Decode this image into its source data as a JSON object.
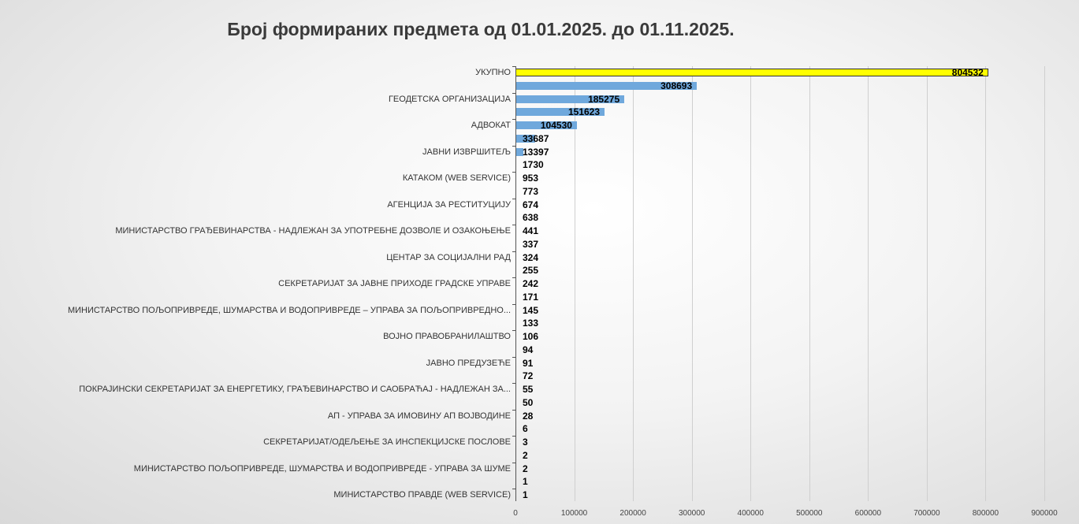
{
  "chart_data": {
    "type": "bar",
    "orientation": "horizontal",
    "title": "Број формираних предмета од 01.01.2025. до 01.11.2025.",
    "xlabel": "",
    "ylabel": "",
    "xlim": [
      0,
      900000
    ],
    "x_ticks": [
      "0",
      "100000",
      "200000",
      "300000",
      "400000",
      "500000",
      "600000",
      "700000",
      "800000",
      "900000"
    ],
    "grid": true,
    "legend": "none",
    "colors": {
      "total": "#ffff00",
      "default": "#6fa8dc"
    },
    "categories": [
      "УКУПНО",
      "",
      "ГЕОДЕТСКА ОРГАНИЗАЦИЈА",
      "",
      "АДВОКАТ",
      "",
      "ЈАВНИ ИЗВРШИТЕЉ",
      "",
      "КАТАКОМ (WEB SERVICE)",
      "",
      "АГЕНЦИЈА ЗА РЕСТИТУЦИЈУ",
      "",
      "МИНИСТАРСТВО ГРАЂЕВИНАРСТВА - НАДЛЕЖАН ЗА УПОТРЕБНЕ ДОЗВОЛЕ И ОЗАКОЊЕЊЕ",
      "",
      "ЦЕНТАР ЗА СОЦИЈАЛНИ РАД",
      "",
      "СЕКРЕТАРИЈАТ ЗА ЈАВНЕ ПРИХОДЕ ГРАДСКЕ УПРАВЕ",
      "",
      "МИНИСТАРСТВО ПОЉОПРИВРЕДЕ, ШУМАРСТВА И ВОДОПРИВРЕДЕ – УПРАВА ЗА ПОЉОПРИВРЕДНО...",
      "",
      "ВОЈНО ПРАВОБРАНИЛАШТВО",
      "",
      "ЈАВНО ПРЕДУЗЕЋЕ",
      "",
      "ПОКРАЈИНСКИ СЕКРЕТАРИЈАТ ЗА ЕНЕРГЕТИКУ, ГРАЂЕВИНАРСТВО И САОБРАЋАЈ - НАДЛЕЖАН ЗА...",
      "",
      "АП - УПРАВА ЗА ИМОВИНУ АП ВОЈВОДИНЕ",
      "",
      "СЕКРЕТАРИЈАТ/ОДЕЉЕЊЕ ЗА ИНСПЕКЦИЈСКЕ ПОСЛОВЕ",
      "",
      "МИНИСТАРСТВО ПОЉОПРИВРЕДЕ, ШУМАРСТВА И ВОДОПРИВРЕДЕ - УПРАВА ЗА ШУМЕ",
      "",
      "МИНИСТАРСТВО ПРАВДЕ (WEB SERVICE)"
    ],
    "values": [
      804532,
      308693,
      185275,
      151623,
      104530,
      33687,
      13397,
      1730,
      953,
      773,
      674,
      638,
      441,
      337,
      324,
      255,
      242,
      171,
      145,
      133,
      106,
      94,
      91,
      72,
      55,
      50,
      28,
      6,
      3,
      2,
      2,
      1,
      1
    ]
  }
}
